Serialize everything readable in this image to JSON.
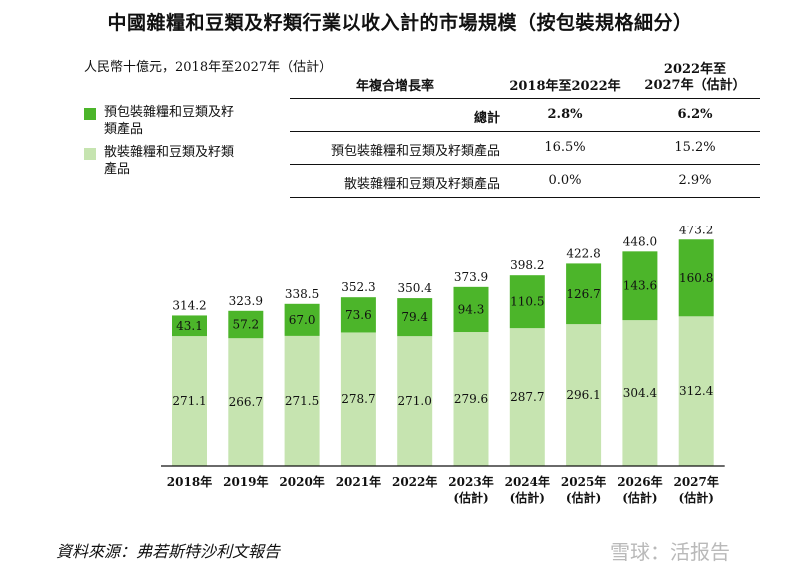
{
  "title": "中國雜糧和豆類及籽類行業以收入計的市場規模（按包裝規格細分）",
  "unit_label": "人民幣十億元，2018年至2027年（估計）",
  "legend": [
    {
      "label": "預包裝雜糧和豆類及籽類產品",
      "color": "#4cb52a"
    },
    {
      "label": "散裝雜糧和豆類及籽類產品",
      "color": "#c6e4b0"
    }
  ],
  "cagr_table": {
    "header": {
      "label": "年複合增長率",
      "col1": "2018年至2022年",
      "col2_line1": "2022年至",
      "col2_line2": "2027年（估計）"
    },
    "rows": [
      {
        "label": "總計",
        "v1": "2.8%",
        "v2": "6.2%"
      },
      {
        "label": "預包裝雜糧和豆類及籽類產品",
        "v1": "16.5%",
        "v2": "15.2%"
      },
      {
        "label": "散裝雜糧和豆類及籽類產品",
        "v1": "0.0%",
        "v2": "2.9%"
      }
    ]
  },
  "chart_data": {
    "type": "bar",
    "stacked": true,
    "categories": [
      [
        "2018年"
      ],
      [
        "2019年"
      ],
      [
        "2020年"
      ],
      [
        "2021年"
      ],
      [
        "2022年"
      ],
      [
        "2023年",
        "(估計)"
      ],
      [
        "2024年",
        "(估計)"
      ],
      [
        "2025年",
        "(估計)"
      ],
      [
        "2026年",
        "(估計)"
      ],
      [
        "2027年",
        "(估計)"
      ]
    ],
    "series": [
      {
        "name": "散裝雜糧和豆類及籽類產品",
        "values": [
          271.1,
          266.7,
          271.5,
          278.7,
          271.0,
          279.6,
          287.7,
          296.1,
          304.4,
          312.4
        ],
        "color": "#c6e4b0"
      },
      {
        "name": "預包裝雜糧和豆類及籽類產品",
        "values": [
          43.1,
          57.2,
          67.0,
          73.6,
          79.4,
          94.3,
          110.5,
          126.7,
          143.6,
          160.8
        ],
        "color": "#4cb52a"
      }
    ],
    "totals": [
      314.2,
      323.9,
      338.5,
      352.3,
      350.4,
      373.9,
      398.2,
      422.8,
      448.0,
      473.2
    ],
    "ylim": [
      0,
      480
    ],
    "grid": false,
    "legend_position": "top-left"
  },
  "source": "資料來源：弗若斯特沙利文報告",
  "watermark": "雪球：活报告"
}
